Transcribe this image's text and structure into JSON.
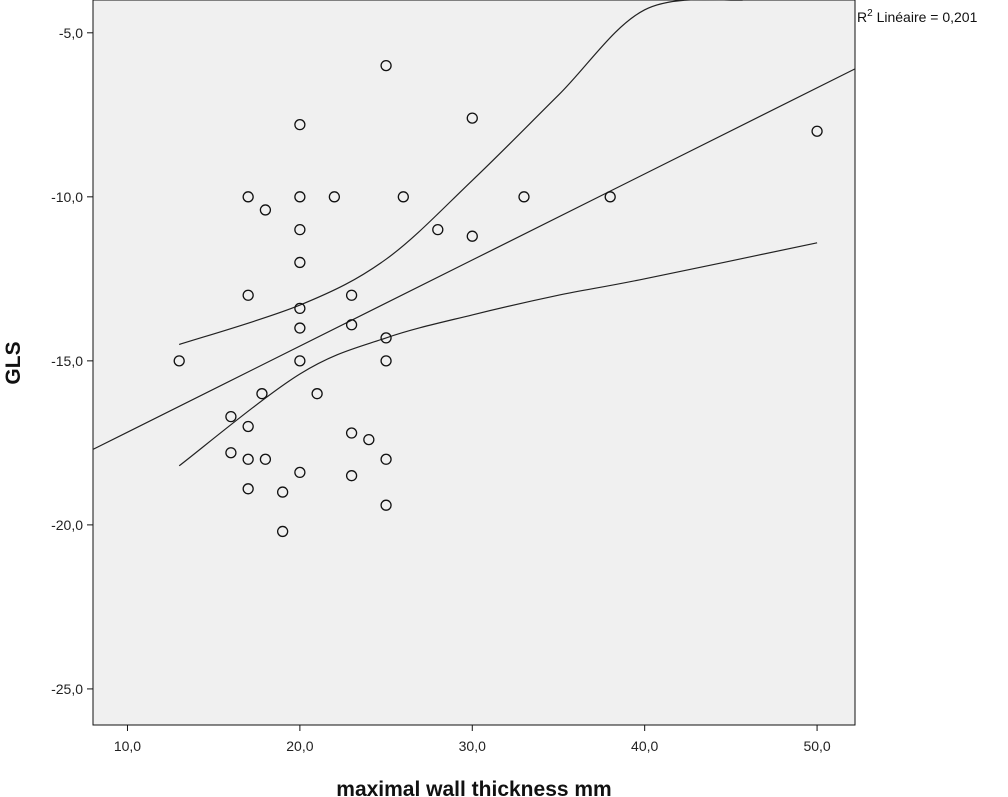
{
  "chart_data": {
    "type": "scatter",
    "xlabel": "maximal wall thickness mm",
    "ylabel": "GLS",
    "xlim": [
      8.0,
      52.2
    ],
    "ylim": [
      -26.1,
      -4.0
    ],
    "x_ticks": [
      10,
      20,
      30,
      40,
      50
    ],
    "x_tick_labels": [
      "10,0",
      "20,0",
      "30,0",
      "40,0",
      "50,0"
    ],
    "y_ticks": [
      -5,
      -10,
      -15,
      -20,
      -25
    ],
    "y_tick_labels": [
      "-5,0",
      "-10,0",
      "-15,0",
      "-20,0",
      "-25,0"
    ],
    "grid": false,
    "background": "#f0f0f0",
    "point_style": "open-circle",
    "annotation": {
      "prefix": "R",
      "superscript": "2",
      "text": " Linéaire = 0,201"
    },
    "points": [
      {
        "x": 13,
        "y": -15.0
      },
      {
        "x": 16,
        "y": -16.7
      },
      {
        "x": 16,
        "y": -17.8
      },
      {
        "x": 17,
        "y": -10.0
      },
      {
        "x": 17,
        "y": -13.0
      },
      {
        "x": 17,
        "y": -17.0
      },
      {
        "x": 17,
        "y": -18.0
      },
      {
        "x": 17,
        "y": -18.9
      },
      {
        "x": 17.8,
        "y": -16.0
      },
      {
        "x": 18,
        "y": -10.4
      },
      {
        "x": 18,
        "y": -18.0
      },
      {
        "x": 19,
        "y": -19.0
      },
      {
        "x": 19,
        "y": -20.2
      },
      {
        "x": 20,
        "y": -7.8
      },
      {
        "x": 20,
        "y": -10.0
      },
      {
        "x": 20,
        "y": -11.0
      },
      {
        "x": 20,
        "y": -12.0
      },
      {
        "x": 20,
        "y": -13.4
      },
      {
        "x": 20,
        "y": -14.0
      },
      {
        "x": 20,
        "y": -15.0
      },
      {
        "x": 20,
        "y": -18.4
      },
      {
        "x": 21,
        "y": -16.0
      },
      {
        "x": 22,
        "y": -10.0
      },
      {
        "x": 23,
        "y": -13.0
      },
      {
        "x": 23,
        "y": -13.9
      },
      {
        "x": 23,
        "y": -17.2
      },
      {
        "x": 23,
        "y": -18.5
      },
      {
        "x": 24,
        "y": -17.4
      },
      {
        "x": 25,
        "y": -6.0
      },
      {
        "x": 25,
        "y": -14.3
      },
      {
        "x": 25,
        "y": -15.0
      },
      {
        "x": 25,
        "y": -18.0
      },
      {
        "x": 25,
        "y": -19.4
      },
      {
        "x": 26,
        "y": -10.0
      },
      {
        "x": 28,
        "y": -11.0
      },
      {
        "x": 30,
        "y": -7.6
      },
      {
        "x": 30,
        "y": -11.2
      },
      {
        "x": 33,
        "y": -10.0
      },
      {
        "x": 38,
        "y": -10.0
      },
      {
        "x": 50,
        "y": -8.0
      }
    ],
    "fit_line": {
      "x": [
        8.0,
        52.2
      ],
      "y": [
        -17.7,
        -6.1
      ]
    },
    "ci_upper": {
      "x": [
        13,
        20,
        25,
        30,
        35,
        40,
        45.7
      ],
      "y": [
        -14.5,
        -13.3,
        -11.9,
        -9.5,
        -6.9,
        -4.3,
        -4.0
      ]
    },
    "ci_lower": {
      "x": [
        13,
        20,
        25,
        30,
        35,
        40,
        50
      ],
      "y": [
        -18.2,
        -15.4,
        -14.3,
        -13.6,
        -13.0,
        -12.5,
        -11.4
      ]
    }
  }
}
